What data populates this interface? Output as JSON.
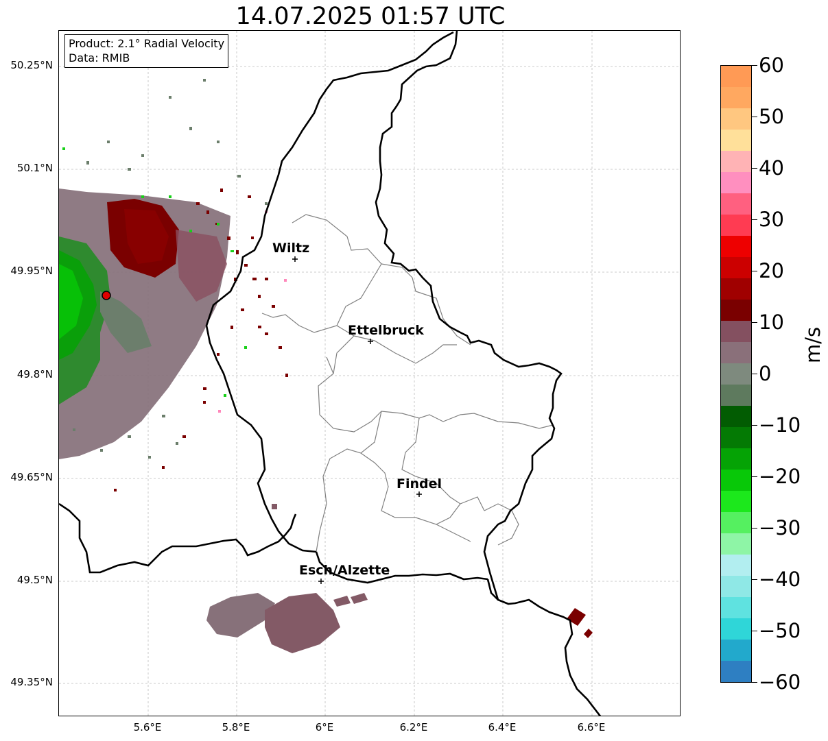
{
  "title": "14.07.2025 01:57 UTC",
  "infobox": {
    "product": "Product: 2.1° Radial Velocity",
    "data": "Data: RMIB"
  },
  "map": {
    "lat_ticks": [
      "50.25°N",
      "50.1°N",
      "49.95°N",
      "49.8°N",
      "49.65°N",
      "49.5°N",
      "49.35°N"
    ],
    "lon_ticks": [
      "5.6°E",
      "5.8°E",
      "6°E",
      "6.2°E",
      "6.4°E",
      "6.6°E"
    ],
    "cities": [
      {
        "name": "Wiltz"
      },
      {
        "name": "Ettelbruck"
      },
      {
        "name": "Findel"
      },
      {
        "name": "Esch/Alzette"
      }
    ],
    "radar_site_color": "#e00000"
  },
  "colorbar": {
    "unit": "m/s",
    "ticks": [
      "60",
      "50",
      "40",
      "30",
      "20",
      "10",
      "0",
      "−10",
      "−20",
      "−30",
      "−40",
      "−50",
      "−60"
    ],
    "min": -60,
    "max": 60,
    "colors": [
      "#2e7fc2",
      "#22a9cc",
      "#2fd6d8",
      "#5fe2e0",
      "#8fe8e6",
      "#b2eef0",
      "#8ef5a6",
      "#55f060",
      "#1ce81c",
      "#08c808",
      "#05a305",
      "#047a04",
      "#025c02",
      "#5e7a5e",
      "#7e8a7e",
      "#8a707a",
      "#845060",
      "#7a0000",
      "#a00000",
      "#cc0000",
      "#ee0000",
      "#ff3b52",
      "#ff6080",
      "#ff8fbf",
      "#ffb3b5",
      "#ffe09a",
      "#ffc780",
      "#ffa860",
      "#ff9a55"
    ]
  }
}
